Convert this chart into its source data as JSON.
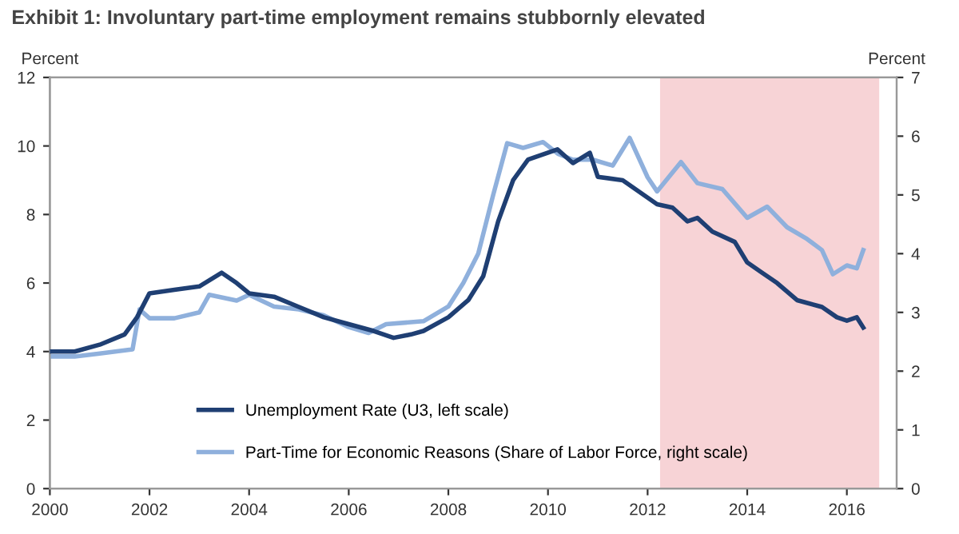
{
  "chart_data": {
    "type": "line",
    "title": "Exhibit 1: Involuntary part-time employment remains stubbornly elevated",
    "ylabel": "Percent",
    "y2label": "Percent",
    "xlim": [
      2000,
      2017
    ],
    "xticks": [
      2000,
      2002,
      2004,
      2006,
      2008,
      2010,
      2012,
      2014,
      2016
    ],
    "ylim": [
      0,
      12
    ],
    "yticks": [
      0,
      2,
      4,
      6,
      8,
      10,
      12
    ],
    "y2lim": [
      0,
      7
    ],
    "y2ticks": [
      0,
      1,
      2,
      3,
      4,
      5,
      6,
      7
    ],
    "grid": false,
    "legend": "bottom",
    "marker": "none",
    "line_style": "solid",
    "bands": [
      {
        "axis": "x",
        "from": 2012.25,
        "to": 2016.65,
        "color": "#f7d3d6"
      }
    ],
    "series": [
      {
        "name": "Unemployment Rate (U3, left scale)",
        "color": "#1f3f73",
        "x": [
          2000,
          2000.5,
          2001,
          2001.5,
          2001.75,
          2002,
          2002.5,
          2003,
          2003.45,
          2003.75,
          2004,
          2004.5,
          2005,
          2005.5,
          2006,
          2006.5,
          2006.9,
          2007.25,
          2007.5,
          2008,
          2008.4,
          2008.7,
          2009,
          2009.3,
          2009.6,
          2010.19,
          2010.5,
          2010.84,
          2011,
          2011.5,
          2012.19,
          2012.5,
          2012.8,
          2013,
          2013.3,
          2013.75,
          2014,
          2014.3,
          2014.6,
          2015,
          2015.5,
          2015.8,
          2016,
          2016.2,
          2016.33
        ],
        "values": [
          4.0,
          4.0,
          4.2,
          4.5,
          5.0,
          5.7,
          5.8,
          5.9,
          6.3,
          6.0,
          5.7,
          5.6,
          5.3,
          5.0,
          4.8,
          4.6,
          4.4,
          4.5,
          4.6,
          5.0,
          5.5,
          6.2,
          7.8,
          9.0,
          9.6,
          9.9,
          9.5,
          9.8,
          9.1,
          9.0,
          8.3,
          8.2,
          7.8,
          7.9,
          7.5,
          7.2,
          6.6,
          6.3,
          6.0,
          5.5,
          5.3,
          5.0,
          4.9,
          5.0,
          4.7
        ]
      },
      {
        "name": "Part-Time for Economic Reasons (Share of Labor Force, right scale)",
        "color": "#8fb0dc",
        "axis": "y2",
        "x": [
          2000,
          2000.5,
          2001,
          2001.66,
          2001.8,
          2002,
          2002.5,
          2003,
          2003.2,
          2003.75,
          2004,
          2004.5,
          2005,
          2005.5,
          2006,
          2006.4,
          2006.75,
          2007.5,
          2008,
          2008.3,
          2008.6,
          2008.9,
          2009.18,
          2009.5,
          2009.9,
          2010.2,
          2010.5,
          2010.9,
          2011.3,
          2011.64,
          2012,
          2012.19,
          2012.67,
          2013,
          2013.5,
          2014,
          2014.4,
          2014.8,
          2015.2,
          2015.5,
          2015.72,
          2016,
          2016.2,
          2016.33
        ],
        "values": [
          2.25,
          2.25,
          2.3,
          2.37,
          3.05,
          2.9,
          2.9,
          3.0,
          3.3,
          3.2,
          3.3,
          3.1,
          3.05,
          2.95,
          2.75,
          2.65,
          2.8,
          2.85,
          3.1,
          3.5,
          4.0,
          5.0,
          5.88,
          5.8,
          5.9,
          5.7,
          5.6,
          5.6,
          5.5,
          5.97,
          5.3,
          5.06,
          5.56,
          5.2,
          5.1,
          4.61,
          4.8,
          4.45,
          4.25,
          4.06,
          3.65,
          3.8,
          3.75,
          4.06
        ]
      }
    ]
  }
}
